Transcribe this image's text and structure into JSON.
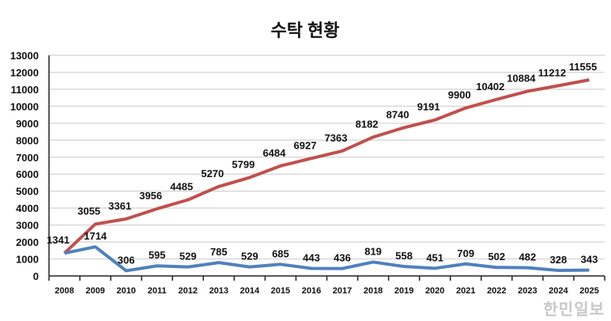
{
  "chart_data": {
    "type": "line",
    "title": "수탁 현황",
    "categories": [
      "2008",
      "2009",
      "2010",
      "2011",
      "2012",
      "2013",
      "2014",
      "2015",
      "2016",
      "2017",
      "2018",
      "2019",
      "2020",
      "2021",
      "2022",
      "2023",
      "2024",
      "2025"
    ],
    "series": [
      {
        "color": "#C0504D",
        "values": [
          1341,
          3055,
          3361,
          3956,
          4485,
          5270,
          5799,
          6484,
          6927,
          7363,
          8182,
          8740,
          9191,
          9900,
          10402,
          10884,
          11212,
          11555
        ]
      },
      {
        "color": "#4F81BD",
        "values": [
          1341,
          1714,
          306,
          595,
          529,
          785,
          529,
          685,
          443,
          436,
          819,
          558,
          451,
          709,
          502,
          482,
          328,
          343
        ]
      }
    ],
    "ylim": [
      0,
      13000
    ],
    "yticks": [
      0,
      1000,
      2000,
      3000,
      4000,
      5000,
      6000,
      7000,
      8000,
      9000,
      10000,
      11000,
      12000,
      13000
    ],
    "grid": true,
    "data_labels": true
  },
  "watermark": "한민일보"
}
